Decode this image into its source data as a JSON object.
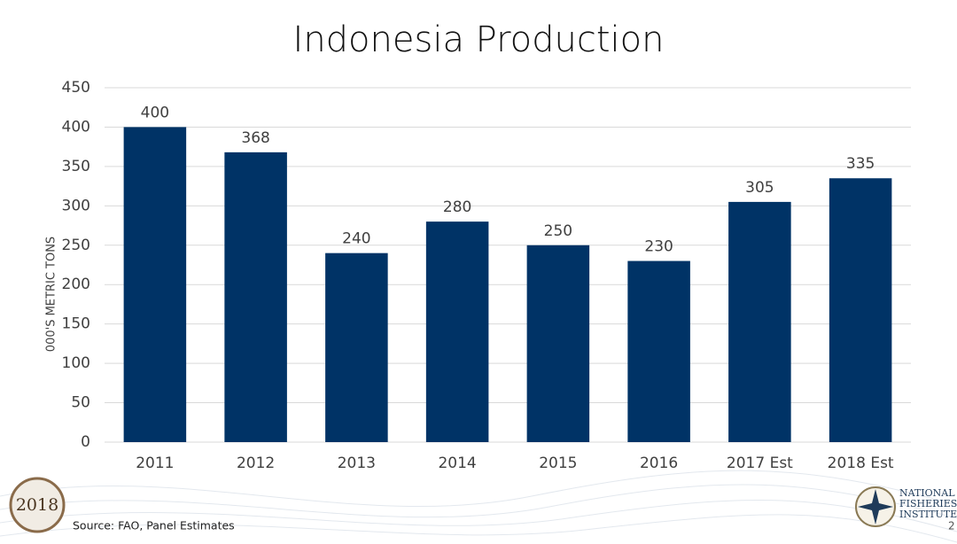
{
  "chart_data": {
    "type": "bar",
    "title": "Indonesia Production",
    "ylabel": "000'S METRIC TONS",
    "categories": [
      "2011",
      "2012",
      "2013",
      "2014",
      "2015",
      "2016",
      "2017 Est",
      "2018 Est"
    ],
    "values": [
      400,
      368,
      240,
      280,
      250,
      230,
      305,
      335
    ],
    "color": "#003366",
    "ylim": [
      0,
      450
    ],
    "yticks": [
      0,
      50,
      100,
      150,
      200,
      250,
      300,
      350,
      400,
      450
    ],
    "grid": true,
    "source": "Source: FAO, Panel Estimates"
  },
  "footer": {
    "left_logo_year": "2018",
    "right_logo_lines": [
      "NATIONAL",
      "FISHERIES",
      "INSTITUTE"
    ],
    "page_number": "2"
  }
}
